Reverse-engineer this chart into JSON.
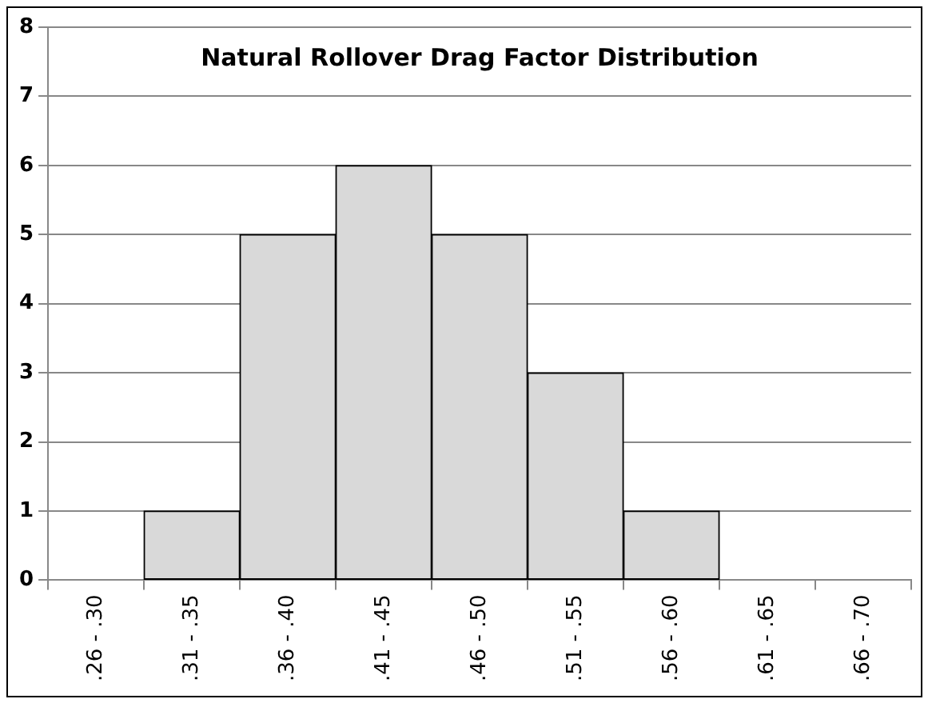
{
  "chart_data": {
    "type": "bar",
    "title": "Natural Rollover Drag Factor Distribution",
    "categories": [
      ".26 - .30",
      ".31 - .35",
      ".36 - .40",
      ".41 - .45",
      ".46 - .50",
      ".51 - .55",
      ".56 - .60",
      ".61 - .65",
      ".66 - .70"
    ],
    "values": [
      0,
      1,
      5,
      6,
      5,
      3,
      1,
      0,
      0
    ],
    "color": "#d9d9d9",
    "ylim": [
      0,
      8
    ],
    "yticks": [
      0,
      1,
      2,
      3,
      4,
      5,
      6,
      7,
      8
    ],
    "grid": "y",
    "legend": false
  }
}
